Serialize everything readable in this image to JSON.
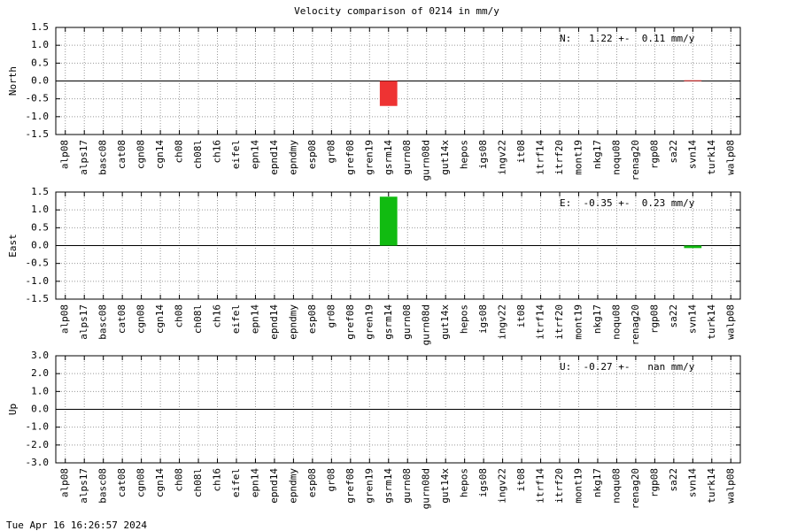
{
  "title": "Velocity comparison of 0214 in mm/y",
  "footer": "Tue Apr 16 16:26:57 2024",
  "chart_data": [
    {
      "type": "bar",
      "ylabel": "North",
      "annotation": "N:   1.22 +-  0.11 mm/y",
      "color": "#ee3333",
      "grid": true,
      "categories": [
        "alp08",
        "alps17",
        "basc08",
        "cat08",
        "cgn08",
        "cgn14",
        "ch08",
        "ch08l",
        "ch16",
        "eifel",
        "epn14",
        "epnd14",
        "epndmy",
        "esp08",
        "gr08",
        "gref08",
        "gren19",
        "gsrm14",
        "gurn08",
        "gurn08d",
        "gut14x",
        "hepos",
        "igs08",
        "ingv22",
        "it08",
        "itrf14",
        "itrf20",
        "mont19",
        "nkg17",
        "noqu08",
        "renag20",
        "rgp08",
        "sa22",
        "svn14",
        "turk14",
        "walp08"
      ],
      "values": [
        null,
        null,
        null,
        null,
        null,
        null,
        null,
        null,
        null,
        null,
        null,
        null,
        null,
        null,
        null,
        null,
        null,
        -0.7,
        null,
        null,
        null,
        null,
        null,
        null,
        null,
        null,
        null,
        null,
        null,
        null,
        null,
        null,
        null,
        0.02,
        null,
        null
      ],
      "ylim": [
        -1.5,
        1.5
      ],
      "yticks": [
        -1.5,
        {
          "value": -1,
          "label": "-1.0"
        },
        -0.5,
        {
          "value": 0,
          "label": "0.0"
        },
        0.5,
        {
          "value": 1,
          "label": "1.0"
        },
        1.5
      ]
    },
    {
      "type": "bar",
      "ylabel": "East",
      "annotation": "E:  -0.35 +-  0.23 mm/y",
      "color": "#11bb11",
      "grid": true,
      "categories": [
        "alp08",
        "alps17",
        "basc08",
        "cat08",
        "cgn08",
        "cgn14",
        "ch08",
        "ch08l",
        "ch16",
        "eifel",
        "epn14",
        "epnd14",
        "epndmy",
        "esp08",
        "gr08",
        "gref08",
        "gren19",
        "gsrm14",
        "gurn08",
        "gurn08d",
        "gut14x",
        "hepos",
        "igs08",
        "ingv22",
        "it08",
        "itrf14",
        "itrf20",
        "mont19",
        "nkg17",
        "noqu08",
        "renag20",
        "rgp08",
        "sa22",
        "svn14",
        "turk14",
        "walp08"
      ],
      "values": [
        null,
        null,
        null,
        null,
        null,
        null,
        null,
        null,
        null,
        null,
        null,
        null,
        null,
        null,
        null,
        null,
        null,
        1.37,
        null,
        null,
        null,
        null,
        null,
        null,
        null,
        null,
        null,
        null,
        null,
        null,
        null,
        null,
        null,
        -0.07,
        null,
        null
      ],
      "ylim": [
        -1.5,
        1.5
      ],
      "yticks": [
        -1.5,
        {
          "value": -1,
          "label": "-1.0"
        },
        -0.5,
        {
          "value": 0,
          "label": "0.0"
        },
        0.5,
        {
          "value": 1,
          "label": "1.0"
        },
        1.5
      ]
    },
    {
      "type": "bar",
      "ylabel": "Up",
      "annotation": "U:  -0.27 +-   nan mm/y",
      "color": "#3333ee",
      "grid": true,
      "categories": [
        "alp08",
        "alps17",
        "basc08",
        "cat08",
        "cgn08",
        "cgn14",
        "ch08",
        "ch08l",
        "ch16",
        "eifel",
        "epn14",
        "epnd14",
        "epndmy",
        "esp08",
        "gr08",
        "gref08",
        "gren19",
        "gsrm14",
        "gurn08",
        "gurn08d",
        "gut14x",
        "hepos",
        "igs08",
        "ingv22",
        "it08",
        "itrf14",
        "itrf20",
        "mont19",
        "nkg17",
        "noqu08",
        "renag20",
        "rgp08",
        "sa22",
        "svn14",
        "turk14",
        "walp08"
      ],
      "values": [
        null,
        null,
        null,
        null,
        null,
        null,
        null,
        null,
        null,
        null,
        null,
        null,
        null,
        null,
        null,
        null,
        null,
        null,
        null,
        null,
        null,
        null,
        null,
        null,
        null,
        null,
        null,
        null,
        null,
        null,
        null,
        null,
        null,
        null,
        null,
        null
      ],
      "ylim": [
        -3,
        3
      ],
      "yticks": [
        {
          "value": -3,
          "label": "-3.0"
        },
        {
          "value": -2,
          "label": "-2.0"
        },
        {
          "value": -1,
          "label": "-1.0"
        },
        {
          "value": 0,
          "label": "0.0"
        },
        {
          "value": 1,
          "label": "1.0"
        },
        {
          "value": 2,
          "label": "2.0"
        },
        {
          "value": 3,
          "label": "3.0"
        }
      ]
    }
  ]
}
